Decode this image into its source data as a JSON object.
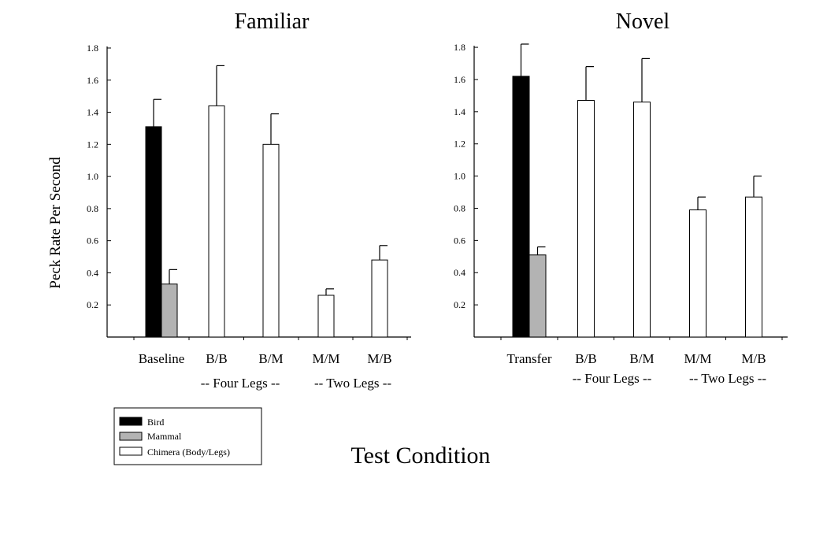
{
  "figure": {
    "ylabel": "Peck Rate Per Second",
    "xlabel": "Test Condition",
    "legend": {
      "placement": "bottom-left",
      "entries": [
        {
          "label": "Bird",
          "color": "#000000"
        },
        {
          "label": "Mammal",
          "color": "#b3b3b3"
        },
        {
          "label": "Chimera (Body/Legs)",
          "color": "#ffffff"
        }
      ]
    }
  },
  "chart_data": [
    {
      "type": "bar",
      "title": "Familiar",
      "ylabel": "Peck Rate Per Second",
      "xlabel": "Test Condition",
      "ylim": [
        0,
        1.8
      ],
      "yticks": [
        "0.2",
        "0.4",
        "0.6",
        "0.8",
        "1.0",
        "1.2",
        "1.4",
        "1.6",
        "1.8"
      ],
      "categories": [
        "Baseline",
        "B/B",
        "B/M",
        "M/M",
        "M/B"
      ],
      "groups": [
        "-- Four Legs --",
        "-- Two Legs --"
      ],
      "bars": [
        {
          "category": "Baseline",
          "series": "Bird",
          "value": 1.31,
          "error": 0.17
        },
        {
          "category": "Baseline",
          "series": "Mammal",
          "value": 0.33,
          "error": 0.09
        },
        {
          "category": "B/B",
          "series": "Chimera (Body/Legs)",
          "value": 1.44,
          "error": 0.25
        },
        {
          "category": "B/M",
          "series": "Chimera (Body/Legs)",
          "value": 1.2,
          "error": 0.19
        },
        {
          "category": "M/M",
          "series": "Chimera (Body/Legs)",
          "value": 0.26,
          "error": 0.04
        },
        {
          "category": "M/B",
          "series": "Chimera (Body/Legs)",
          "value": 0.48,
          "error": 0.09
        }
      ]
    },
    {
      "type": "bar",
      "title": "Novel",
      "ylabel": "Peck Rate Per Second",
      "xlabel": "Test Condition",
      "ylim": [
        0,
        1.8
      ],
      "yticks": [
        "0.2",
        "0.4",
        "0.6",
        "0.8",
        "1.0",
        "1.2",
        "1.4",
        "1.6",
        "1.8"
      ],
      "categories": [
        "Transfer",
        "B/B",
        "B/M",
        "M/M",
        "M/B"
      ],
      "groups": [
        "-- Four Legs --",
        "-- Two Legs --"
      ],
      "bars": [
        {
          "category": "Transfer",
          "series": "Bird",
          "value": 1.62,
          "error": 0.2
        },
        {
          "category": "Transfer",
          "series": "Mammal",
          "value": 0.51,
          "error": 0.05
        },
        {
          "category": "B/B",
          "series": "Chimera (Body/Legs)",
          "value": 1.47,
          "error": 0.21
        },
        {
          "category": "B/M",
          "series": "Chimera (Body/Legs)",
          "value": 1.46,
          "error": 0.27
        },
        {
          "category": "M/M",
          "series": "Chimera (Body/Legs)",
          "value": 0.79,
          "error": 0.08
        },
        {
          "category": "M/B",
          "series": "Chimera (Body/Legs)",
          "value": 0.87,
          "error": 0.13
        }
      ]
    }
  ]
}
